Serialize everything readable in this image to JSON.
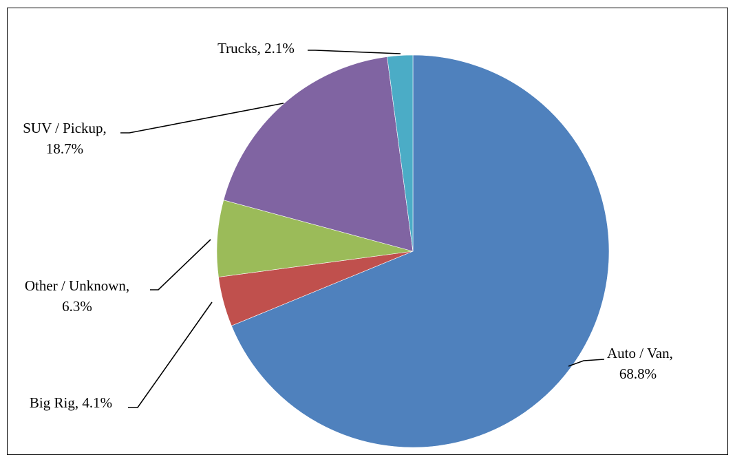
{
  "chart_data": {
    "type": "pie",
    "title": "",
    "slices": [
      {
        "name": "Auto / Van",
        "value": 68.8,
        "label_line1": "Auto / Van,",
        "label_line2": "68.8%",
        "color": "#4F81BD"
      },
      {
        "name": "Big Rig",
        "value": 4.1,
        "label_line1": "Big Rig, 4.1%",
        "label_line2": "",
        "color": "#C0504D"
      },
      {
        "name": "Other / Unknown",
        "value": 6.3,
        "label_line1": "Other / Unknown,",
        "label_line2": "6.3%",
        "color": "#9BBB59"
      },
      {
        "name": "SUV / Pickup",
        "value": 18.7,
        "label_line1": "SUV / Pickup,",
        "label_line2": "18.7%",
        "color": "#8064A2"
      },
      {
        "name": "Trucks",
        "value": 2.1,
        "label_line1": "Trucks, 2.1%",
        "label_line2": "",
        "color": "#4BACC6"
      }
    ],
    "start_angle_deg": 0,
    "direction": "clockwise",
    "legend": "none",
    "data_labels": "outside-with-leader-lines"
  }
}
